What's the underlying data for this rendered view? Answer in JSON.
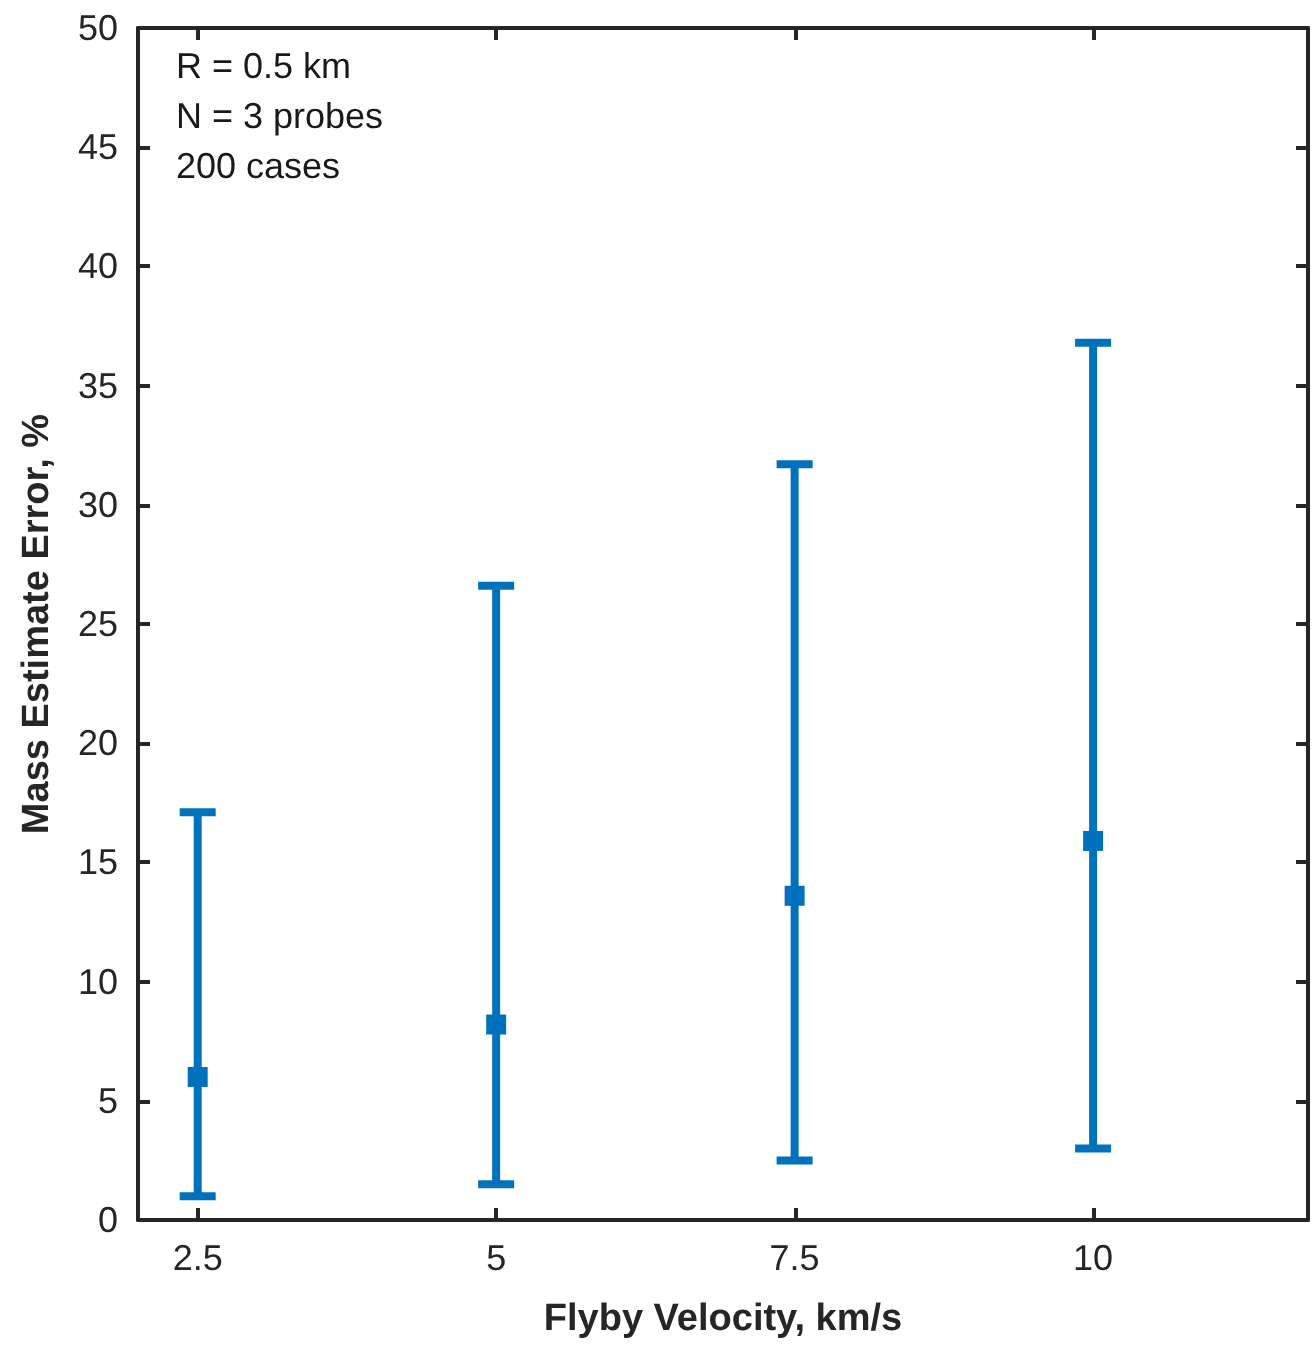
{
  "chart_data": {
    "type": "scatter",
    "xlabel": "Flyby Velocity, km/s",
    "ylabel": "Mass Estimate Error, %",
    "annotations": [
      "R = 0.5 km",
      "N = 3 probes",
      "200 cases"
    ],
    "x": [
      2.5,
      5,
      7.5,
      10
    ],
    "series": [
      {
        "color": "#0072bd",
        "values": [
          6.0,
          8.2,
          13.6,
          15.9
        ],
        "errors": [
          [
            1.0,
            17.1
          ],
          [
            1.5,
            26.6
          ],
          [
            2.5,
            31.7
          ],
          [
            3.0,
            36.8
          ]
        ]
      }
    ],
    "xlim": [
      2,
      11.8
    ],
    "xticks": [
      2.5,
      5,
      7.5,
      10
    ],
    "ylim": [
      0,
      50
    ],
    "yticks": [
      0,
      5,
      10,
      15,
      20,
      25,
      30,
      35,
      40,
      45,
      50
    ],
    "marker": "square"
  }
}
